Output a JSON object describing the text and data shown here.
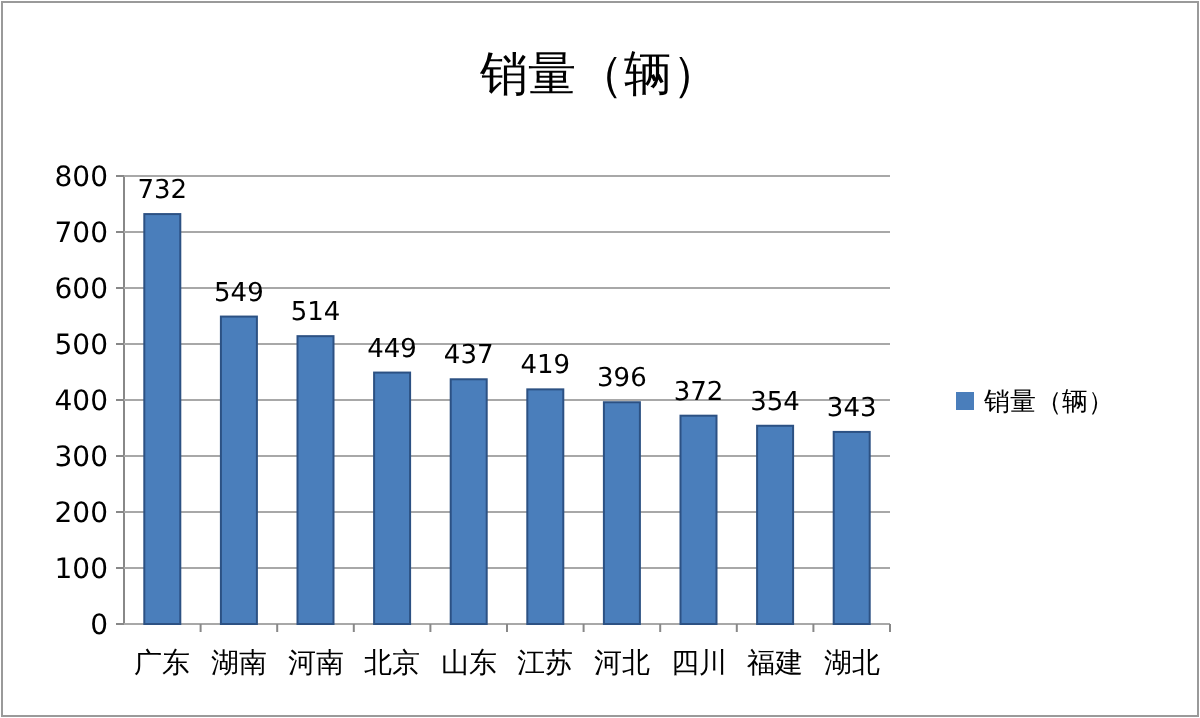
{
  "chart_data": {
    "type": "bar",
    "title": "销量（辆）",
    "categories": [
      "广东",
      "湖南",
      "河南",
      "北京",
      "山东",
      "江苏",
      "河北",
      "四川",
      "福建",
      "湖北"
    ],
    "series": [
      {
        "name": "销量（辆）",
        "color": "#4a7ebb",
        "values": [
          732,
          549,
          514,
          449,
          437,
          419,
          396,
          372,
          354,
          343
        ]
      }
    ],
    "ylim": [
      0,
      800
    ],
    "yticks": [
      0,
      100,
      200,
      300,
      400,
      500,
      600,
      700,
      800
    ],
    "grid": "y",
    "legend": "right",
    "data_labels": true
  }
}
